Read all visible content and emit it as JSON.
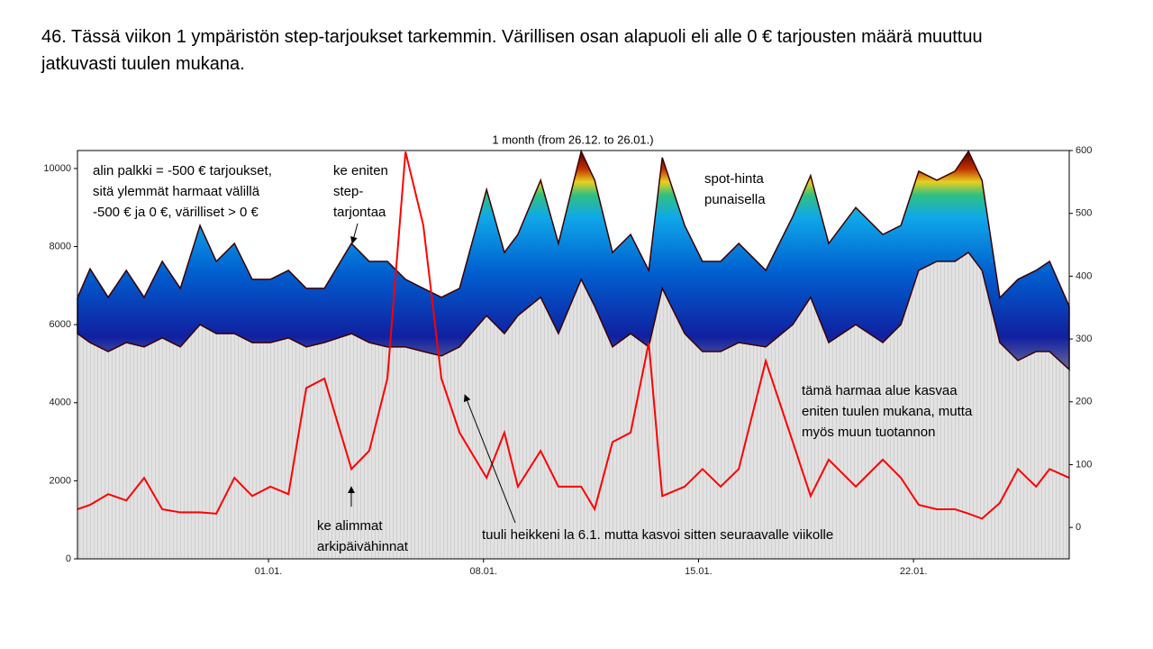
{
  "slide_title": [
    "46. Tässä viikon 1 ympäristön step-tarjoukset tarkemmin. Värillisen osan alapuoli eli alle 0 € tarjousten määrä muuttuu",
    "jatkuvasti tuulen mukana."
  ],
  "chart_data": {
    "type": "stacked-area-line",
    "title": "1 month (from 26.12. to 26.01.)",
    "x": [
      -6.22,
      -5.81,
      -5.22,
      -4.63,
      -4.05,
      -3.46,
      -2.87,
      -2.23,
      -1.7,
      -1.11,
      -0.53,
      0.06,
      0.65,
      1.23,
      1.82,
      2.7,
      3.28,
      3.87,
      4.46,
      5.04,
      5.63,
      6.22,
      7.1,
      7.68,
      8.12,
      8.86,
      9.44,
      10.18,
      10.62,
      11.2,
      11.79,
      12.38,
      12.82,
      13.55,
      14.13,
      14.72,
      15.31,
      16.19,
      17.07,
      17.65,
      18.24,
      19.12,
      20.0,
      20.59,
      21.17,
      21.76,
      22.35,
      22.79,
      23.23,
      23.81,
      24.4,
      24.99,
      25.43,
      26.07
    ],
    "series": [
      {
        "color": "#dcdcdc",
        "values": [
          5770,
          5540,
          5310,
          5540,
          5430,
          5660,
          5430,
          6000,
          5770,
          5770,
          5540,
          5540,
          5660,
          5430,
          5540,
          5770,
          5540,
          5430,
          5430,
          5310,
          5200,
          5430,
          6230,
          5770,
          6230,
          6700,
          5770,
          7160,
          6470,
          5430,
          5770,
          5430,
          6930,
          5770,
          5310,
          5310,
          5540,
          5430,
          6000,
          6700,
          5540,
          6000,
          5540,
          6000,
          7390,
          7620,
          7620,
          7850,
          7390,
          5540,
          5080,
          5310,
          5310,
          4850
        ]
      },
      {
        "color": "#0050c0",
        "values": [
          920,
          1890,
          1390,
          1850,
          1270,
          1960,
          1500,
          2540,
          1850,
          2310,
          1620,
          1620,
          1730,
          1500,
          1390,
          2310,
          2080,
          2190,
          1730,
          1620,
          1500,
          1500,
          3230,
          2080,
          2080,
          3000,
          2310,
          3280,
          3230,
          2420,
          2540,
          1960,
          3350,
          2770,
          2310,
          2310,
          2540,
          1960,
          2770,
          3120,
          2540,
          3000,
          2770,
          2540,
          2540,
          2080,
          2310,
          2590,
          2310,
          1150,
          2080,
          2080,
          2310,
          1620
        ]
      },
      {
        "color": "#ff0000",
        "axis": "y2",
        "values": [
          29,
          36,
          53,
          43,
          79,
          29,
          24,
          24,
          22,
          79,
          50,
          65,
          53,
          222,
          237,
          93,
          122,
          237,
          598,
          481,
          237,
          151,
          79,
          151,
          65,
          122,
          65,
          65,
          29,
          136,
          151,
          294,
          50,
          65,
          93,
          65,
          93,
          265,
          136,
          50,
          108,
          65,
          108,
          79,
          36,
          29,
          29,
          22,
          14,
          39,
          93,
          65,
          93,
          79
        ]
      }
    ],
    "xlim": [
      -6.22,
      26.07
    ],
    "xticks": [
      {
        "value": 0,
        "label": "01.01."
      },
      {
        "value": 7,
        "label": "08.01."
      },
      {
        "value": 14,
        "label": "15.01."
      },
      {
        "value": 21,
        "label": "22.01."
      }
    ],
    "ylim": [
      0,
      10460
    ],
    "yticks": [
      0,
      2000,
      4000,
      6000,
      8000,
      10000
    ],
    "y2lim": [
      -50,
      600
    ],
    "y2ticks": [
      0,
      100,
      200,
      300,
      400,
      500,
      600
    ],
    "annotations": [
      [
        "alin palkki = -500 € tarjoukset,",
        "sitä ylemmät harmaat välillä",
        "-500 € ja 0 €, värilliset > 0 €"
      ],
      [
        "ke eniten",
        "step-",
        "tarjontaa"
      ],
      [
        "spot-hinta",
        "punaisella"
      ],
      [
        "tämä harmaa alue kasvaa",
        "eniten tuulen mukana, mutta",
        "myös muun tuotannon"
      ],
      [
        "ke alimmat",
        "arkipäivähinnat"
      ],
      [
        "tuuli heikkeni la 6.1. mutta kasvoi sitten seuraavalle viikolle"
      ]
    ]
  }
}
